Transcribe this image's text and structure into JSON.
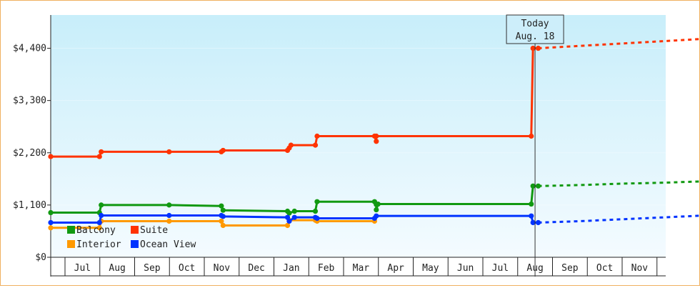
{
  "chart_data": {
    "type": "line",
    "y_tick_labels": [
      "$0",
      "$1,100",
      "$2,200",
      "$3,300",
      "$4,400"
    ],
    "y_ticks": [
      0,
      1100,
      2200,
      3300,
      4400
    ],
    "ylim": [
      0,
      5100
    ],
    "x_tick_labels": [
      "Jul",
      "Aug",
      "Sep",
      "Oct",
      "Nov",
      "Dec",
      "Jan",
      "Feb",
      "Mar",
      "Apr",
      "May",
      "Jun",
      "Jul",
      "Aug",
      "Sep",
      "Oct",
      "Nov"
    ],
    "today_marker": {
      "line1": "Today",
      "line2": "Aug. 18",
      "x": 13.95
    },
    "series": [
      {
        "name": "Suite",
        "color": "#ff3300",
        "points": [
          [
            0,
            2120
          ],
          [
            1.4,
            2120
          ],
          [
            1.45,
            2220
          ],
          [
            3.4,
            2220
          ],
          [
            4.9,
            2220
          ],
          [
            4.95,
            2250
          ],
          [
            6.8,
            2250
          ],
          [
            6.85,
            2300
          ],
          [
            6.9,
            2360
          ],
          [
            7.6,
            2360
          ],
          [
            7.65,
            2550
          ],
          [
            9.3,
            2550
          ],
          [
            9.35,
            2440
          ],
          [
            9.35,
            2550
          ],
          [
            13.8,
            2550
          ],
          [
            13.85,
            4400
          ],
          [
            14.0,
            4400
          ]
        ],
        "forecast": [
          [
            14.0,
            4400
          ],
          [
            15.2,
            4450
          ],
          [
            16.4,
            4500
          ],
          [
            17.6,
            4550
          ],
          [
            18.8,
            4600
          ],
          [
            19.9,
            4650
          ]
        ]
      },
      {
        "name": "Balcony",
        "color": "#119911",
        "points": [
          [
            0,
            940
          ],
          [
            1.4,
            940
          ],
          [
            1.45,
            1100
          ],
          [
            3.4,
            1100
          ],
          [
            4.9,
            1080
          ],
          [
            4.95,
            990
          ],
          [
            6.8,
            970
          ],
          [
            6.85,
            930
          ],
          [
            7.0,
            970
          ],
          [
            7.6,
            970
          ],
          [
            7.65,
            1170
          ],
          [
            9.3,
            1170
          ],
          [
            9.35,
            1110
          ],
          [
            9.35,
            1000
          ],
          [
            9.4,
            1120
          ],
          [
            13.8,
            1120
          ],
          [
            13.85,
            1500
          ],
          [
            14.0,
            1500
          ]
        ],
        "forecast": [
          [
            14.0,
            1500
          ],
          [
            15.2,
            1520
          ],
          [
            16.4,
            1550
          ],
          [
            17.6,
            1570
          ],
          [
            18.8,
            1600
          ],
          [
            19.9,
            1660
          ]
        ]
      },
      {
        "name": "Interior",
        "color": "#ff9900",
        "points": [
          [
            0,
            620
          ],
          [
            1.4,
            620
          ],
          [
            1.45,
            760
          ],
          [
            3.4,
            760
          ],
          [
            4.9,
            760
          ],
          [
            4.95,
            670
          ],
          [
            6.8,
            670
          ],
          [
            6.85,
            780
          ],
          [
            7.6,
            780
          ],
          [
            7.65,
            760
          ],
          [
            9.3,
            760
          ]
        ],
        "forecast": []
      },
      {
        "name": "Ocean View",
        "color": "#0033ff",
        "points": [
          [
            0,
            730
          ],
          [
            1.4,
            730
          ],
          [
            1.45,
            880
          ],
          [
            3.4,
            880
          ],
          [
            4.9,
            880
          ],
          [
            4.95,
            860
          ],
          [
            6.8,
            840
          ],
          [
            6.85,
            760
          ],
          [
            7.0,
            840
          ],
          [
            7.6,
            840
          ],
          [
            7.65,
            820
          ],
          [
            9.3,
            820
          ],
          [
            9.35,
            870
          ],
          [
            13.8,
            870
          ],
          [
            13.85,
            730
          ],
          [
            14.0,
            730
          ]
        ],
        "forecast": [
          [
            14.0,
            730
          ],
          [
            15.2,
            760
          ],
          [
            16.4,
            800
          ],
          [
            17.6,
            840
          ],
          [
            18.8,
            880
          ],
          [
            19.9,
            880
          ]
        ]
      }
    ],
    "legend": [
      {
        "name": "Balcony",
        "color": "#119911"
      },
      {
        "name": "Suite",
        "color": "#ff3300"
      },
      {
        "name": "Interior",
        "color": "#ff9900"
      },
      {
        "name": "Ocean View",
        "color": "#0033ff"
      }
    ],
    "background_gradient": [
      "#c8eefa",
      "#f4fbff"
    ]
  }
}
